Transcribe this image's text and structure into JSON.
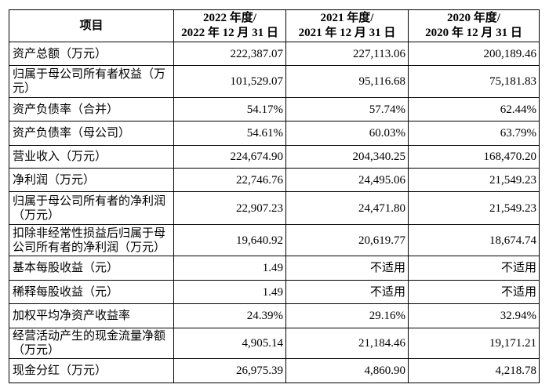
{
  "header": {
    "item": "项目",
    "col1_line1": "2022 年度/",
    "col1_line2": "2022 年 12 月 31 日",
    "col2_line1": "2021 年度/",
    "col2_line2": "2021 年 12 月 31 日",
    "col3_line1": "2020 年度/",
    "col3_line2": "2020 年 12 月 31 日"
  },
  "rows": [
    {
      "label": "资产总额（万元）",
      "v2022": "222,387.07",
      "v2021": "227,113.06",
      "v2020": "200,189.46"
    },
    {
      "label": "归属于母公司所有者权益（万元）",
      "v2022": "101,529.07",
      "v2021": "95,116.68",
      "v2020": "75,181.83"
    },
    {
      "label": "资产负债率（合并）",
      "v2022": "54.17%",
      "v2021": "57.74%",
      "v2020": "62.44%"
    },
    {
      "label": "资产负债率（母公司）",
      "v2022": "54.61%",
      "v2021": "60.03%",
      "v2020": "63.79%"
    },
    {
      "label": "营业收入（万元）",
      "v2022": "224,674.90",
      "v2021": "204,340.25",
      "v2020": "168,470.20"
    },
    {
      "label": "净利润（万元）",
      "v2022": "22,746.76",
      "v2021": "24,495.06",
      "v2020": "21,549.23"
    },
    {
      "label": "归属于母公司所有者的净利润（万元）",
      "v2022": "22,907.23",
      "v2021": "24,471.80",
      "v2020": "21,549.23"
    },
    {
      "label": "扣除非经常性损益后归属于母公司所有者的净利润（万元）",
      "v2022": "19,640.92",
      "v2021": "20,619.77",
      "v2020": "18,674.74"
    },
    {
      "label": "基本每股收益（元）",
      "v2022": "1.49",
      "v2021": "不适用",
      "v2020": "不适用"
    },
    {
      "label": "稀释每股收益（元）",
      "v2022": "1.49",
      "v2021": "不适用",
      "v2020": "不适用"
    },
    {
      "label": "加权平均净资产收益率",
      "v2022": "24.39%",
      "v2021": "29.16%",
      "v2020": "32.94%"
    },
    {
      "label": "经营活动产生的现金流量净额（万元）",
      "v2022": "4,905.14",
      "v2021": "21,184.46",
      "v2020": "19,171.21"
    },
    {
      "label": "现金分红（万元）",
      "v2022": "26,975.39",
      "v2021": "4,860.90",
      "v2020": "4,218.78"
    }
  ]
}
